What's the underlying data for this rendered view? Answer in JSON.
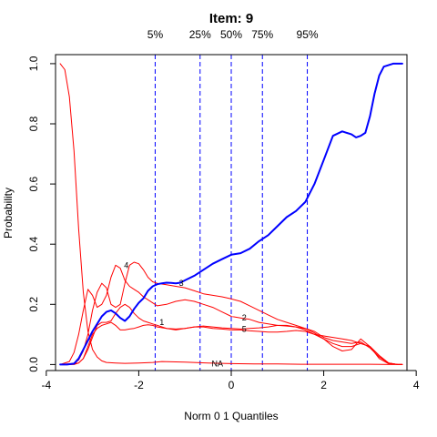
{
  "chart_data": {
    "type": "line",
    "title": "Item:  9",
    "xlabel": "Norm 0 1 Quantiles",
    "ylabel": "Probability",
    "xlim": [
      -3.8,
      3.8
    ],
    "ylim": [
      -0.02,
      1.03
    ],
    "x_ticks": [
      -4,
      -2,
      0,
      2,
      4
    ],
    "y_ticks": [
      0.0,
      0.2,
      0.4,
      0.6,
      0.8,
      1.0
    ],
    "x_tick_labels": [
      "-4",
      "-2",
      "0",
      "2",
      "4"
    ],
    "y_tick_labels": [
      "0.0",
      "0.2",
      "0.4",
      "0.6",
      "0.8",
      "1.0"
    ],
    "grid": false,
    "quantile_lines": [
      {
        "label": "5%",
        "x": -1.645
      },
      {
        "label": "25%",
        "x": -0.674
      },
      {
        "label": "50%",
        "x": 0.0
      },
      {
        "label": "75%",
        "x": 0.674
      },
      {
        "label": "95%",
        "x": 1.645
      }
    ],
    "series": [
      {
        "label": "3",
        "color": "#0000ff",
        "width": 2,
        "x": [
          -3.7,
          -3.55,
          -3.4,
          -3.3,
          -3.2,
          -3.1,
          -3.0,
          -2.9,
          -2.8,
          -2.7,
          -2.6,
          -2.5,
          -2.4,
          -2.3,
          -2.2,
          -2.1,
          -2.0,
          -1.9,
          -1.8,
          -1.7,
          -1.6,
          -1.5,
          -1.4,
          -1.3,
          -1.2,
          -1.1,
          -1.0,
          -0.8,
          -0.6,
          -0.4,
          -0.2,
          0.0,
          0.2,
          0.4,
          0.6,
          0.8,
          1.0,
          1.2,
          1.4,
          1.6,
          1.8,
          2.0,
          2.2,
          2.4,
          2.6,
          2.7,
          2.8,
          2.9,
          3.0,
          3.1,
          3.2,
          3.3,
          3.5,
          3.7
        ],
        "y": [
          0.0,
          0.0,
          0.003,
          0.02,
          0.05,
          0.08,
          0.11,
          0.135,
          0.16,
          0.175,
          0.18,
          0.17,
          0.155,
          0.145,
          0.16,
          0.185,
          0.205,
          0.22,
          0.245,
          0.26,
          0.267,
          0.27,
          0.272,
          0.271,
          0.27,
          0.272,
          0.28,
          0.295,
          0.315,
          0.335,
          0.35,
          0.365,
          0.37,
          0.385,
          0.41,
          0.43,
          0.46,
          0.49,
          0.51,
          0.54,
          0.6,
          0.68,
          0.76,
          0.775,
          0.765,
          0.755,
          0.76,
          0.77,
          0.825,
          0.9,
          0.96,
          0.99,
          1.0,
          1.0
        ]
      },
      {
        "label": "",
        "color": "#ff0000",
        "width": 1,
        "x": [
          -3.7,
          -3.6,
          -3.5,
          -3.4,
          -3.3,
          -3.2,
          -3.1,
          -3.0,
          -2.9,
          -2.8,
          -2.7,
          -2.5,
          -2.3,
          -2.0,
          -1.7,
          -1.5,
          -1.0,
          -0.5,
          0.0,
          0.5,
          1.0,
          1.5,
          2.0,
          2.5,
          3.0,
          3.5,
          3.7
        ],
        "y": [
          1.0,
          0.98,
          0.89,
          0.71,
          0.45,
          0.24,
          0.11,
          0.05,
          0.025,
          0.012,
          0.007,
          0.005,
          0.004,
          0.005,
          0.007,
          0.01,
          0.008,
          0.005,
          0.003,
          0.002,
          0.002,
          0.001,
          0.001,
          0.001,
          0.001,
          0.0,
          0.0
        ]
      },
      {
        "label": "4",
        "color": "#ff0000",
        "width": 1,
        "x": [
          -3.7,
          -3.5,
          -3.4,
          -3.3,
          -3.2,
          -3.1,
          -3.0,
          -2.9,
          -2.8,
          -2.7,
          -2.6,
          -2.5,
          -2.4,
          -2.3,
          -2.2,
          -2.1,
          -2.0,
          -1.9,
          -1.8,
          -1.7,
          -1.6,
          -1.4,
          -1.2,
          -1.0,
          -0.8,
          -0.6,
          -0.4,
          -0.2,
          0.0,
          0.2,
          0.4,
          0.6,
          0.8,
          1.0,
          1.2,
          1.4,
          1.6,
          1.8,
          2.0,
          2.2,
          2.4,
          2.6,
          2.8,
          3.0,
          3.2,
          3.4,
          3.6,
          3.7
        ],
        "y": [
          0.0,
          0.0,
          0.003,
          0.015,
          0.045,
          0.1,
          0.18,
          0.24,
          0.27,
          0.255,
          0.2,
          0.19,
          0.2,
          0.27,
          0.33,
          0.34,
          0.335,
          0.315,
          0.29,
          0.275,
          0.27,
          0.265,
          0.26,
          0.255,
          0.245,
          0.235,
          0.23,
          0.225,
          0.218,
          0.21,
          0.195,
          0.18,
          0.165,
          0.15,
          0.14,
          0.13,
          0.12,
          0.105,
          0.085,
          0.06,
          0.045,
          0.05,
          0.085,
          0.06,
          0.02,
          0.003,
          0.0,
          0.0
        ]
      },
      {
        "label": "2",
        "color": "#ff0000",
        "width": 1,
        "x": [
          -3.7,
          -3.5,
          -3.4,
          -3.3,
          -3.2,
          -3.1,
          -3.0,
          -2.9,
          -2.8,
          -2.7,
          -2.6,
          -2.5,
          -2.4,
          -2.3,
          -2.2,
          -2.1,
          -2.0,
          -1.9,
          -1.8,
          -1.6,
          -1.4,
          -1.2,
          -1.0,
          -0.8,
          -0.6,
          -0.4,
          -0.2,
          0.0,
          0.2,
          0.4,
          0.6,
          0.8,
          1.0,
          1.2,
          1.4,
          1.6,
          1.8,
          2.0,
          2.2,
          2.4,
          2.6,
          2.8,
          3.0,
          3.2,
          3.4,
          3.6,
          3.7
        ],
        "y": [
          0.0,
          0.01,
          0.04,
          0.1,
          0.18,
          0.25,
          0.23,
          0.19,
          0.2,
          0.23,
          0.29,
          0.33,
          0.32,
          0.28,
          0.26,
          0.25,
          0.24,
          0.225,
          0.215,
          0.195,
          0.2,
          0.21,
          0.215,
          0.21,
          0.2,
          0.19,
          0.175,
          0.16,
          0.155,
          0.15,
          0.14,
          0.135,
          0.13,
          0.128,
          0.125,
          0.115,
          0.1,
          0.085,
          0.07,
          0.06,
          0.06,
          0.07,
          0.06,
          0.03,
          0.005,
          0.0,
          0.0
        ]
      },
      {
        "label": "1",
        "color": "#ff0000",
        "width": 1,
        "x": [
          -3.7,
          -3.4,
          -3.3,
          -3.2,
          -3.1,
          -3.0,
          -2.9,
          -2.8,
          -2.7,
          -2.6,
          -2.5,
          -2.4,
          -2.3,
          -2.2,
          -2.1,
          -2.0,
          -1.9,
          -1.8,
          -1.7,
          -1.6,
          -1.4,
          -1.2,
          -1.0,
          -0.8,
          -0.6,
          -0.4,
          -0.2,
          0.0,
          0.2,
          0.4,
          0.6,
          0.8,
          1.0,
          1.2,
          1.4,
          1.6,
          1.8,
          2.0,
          2.2,
          2.4,
          2.6,
          2.8,
          3.0,
          3.2,
          3.4,
          3.6,
          3.7
        ],
        "y": [
          0.0,
          0.0,
          0.005,
          0.02,
          0.05,
          0.09,
          0.13,
          0.14,
          0.14,
          0.145,
          0.17,
          0.19,
          0.2,
          0.19,
          0.17,
          0.155,
          0.145,
          0.14,
          0.135,
          0.13,
          0.12,
          0.115,
          0.12,
          0.125,
          0.128,
          0.125,
          0.122,
          0.12,
          0.118,
          0.12,
          0.122,
          0.125,
          0.13,
          0.13,
          0.125,
          0.12,
          0.11,
          0.09,
          0.08,
          0.075,
          0.07,
          0.075,
          0.055,
          0.025,
          0.005,
          0.0,
          0.0
        ]
      },
      {
        "label": "5",
        "color": "#ff0000",
        "width": 1,
        "x": [
          -3.7,
          -3.3,
          -3.2,
          -3.1,
          -3.0,
          -2.9,
          -2.8,
          -2.7,
          -2.6,
          -2.5,
          -2.4,
          -2.3,
          -2.2,
          -2.1,
          -2.0,
          -1.9,
          -1.8,
          -1.7,
          -1.6,
          -1.4,
          -1.2,
          -1.0,
          -0.8,
          -0.6,
          -0.4,
          -0.2,
          0.0,
          0.2,
          0.4,
          0.6,
          0.8,
          1.0,
          1.2,
          1.4,
          1.6,
          1.8,
          2.0,
          2.2,
          2.4,
          2.6,
          2.8,
          3.0,
          3.2,
          3.4,
          3.6,
          3.7
        ],
        "y": [
          0.0,
          0.005,
          0.02,
          0.06,
          0.1,
          0.12,
          0.13,
          0.135,
          0.14,
          0.13,
          0.115,
          0.115,
          0.118,
          0.12,
          0.125,
          0.13,
          0.132,
          0.13,
          0.125,
          0.12,
          0.118,
          0.12,
          0.125,
          0.125,
          0.12,
          0.118,
          0.115,
          0.115,
          0.112,
          0.11,
          0.108,
          0.108,
          0.11,
          0.113,
          0.11,
          0.1,
          0.095,
          0.09,
          0.085,
          0.08,
          0.07,
          0.06,
          0.03,
          0.005,
          0.0,
          0.0
        ]
      }
    ],
    "curve_labels": [
      {
        "text": "4",
        "x": -2.27,
        "y": 0.33
      },
      {
        "text": "3",
        "x": -1.08,
        "y": 0.27
      },
      {
        "text": "1",
        "x": -1.5,
        "y": 0.14
      },
      {
        "text": "2",
        "x": 0.28,
        "y": 0.155
      },
      {
        "text": "5",
        "x": 0.28,
        "y": 0.118
      },
      {
        "text": "NA",
        "x": -0.3,
        "y": 0.002
      }
    ]
  }
}
